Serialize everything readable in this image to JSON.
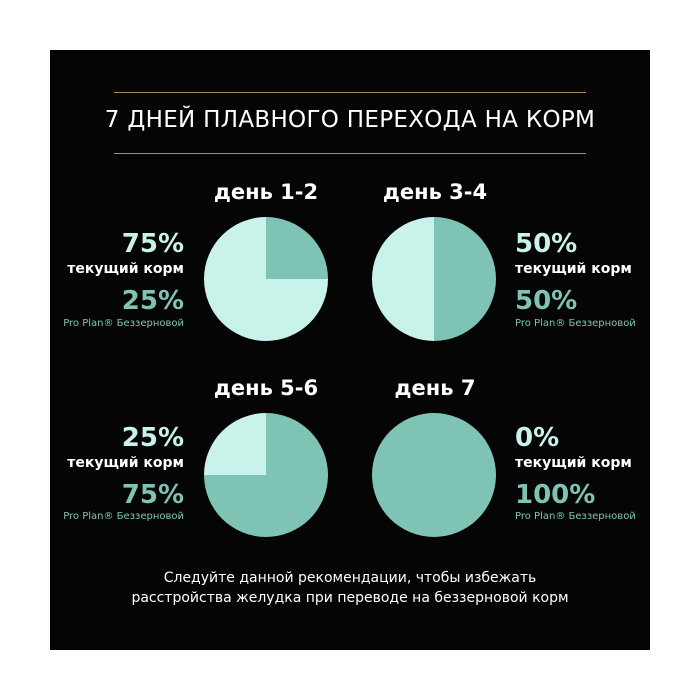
{
  "title": "7 ДНЕЙ ПЛАВНОГО ПЕРЕХОДА НА КОРМ",
  "footer": {
    "line1": "Следуйте данной рекомендации, чтобы избежать",
    "line2": "расстройства желудка при переводе на беззерновой корм"
  },
  "colors": {
    "current_food": "#c9f2ea",
    "pro_plan": "#7fc3b4",
    "background": "#050505",
    "rule": "#b18a4e"
  },
  "chart_data": [
    {
      "type": "pie",
      "title": "день 1-2",
      "labels": [
        "текущий корм",
        "Pro Plan® Беззерновой"
      ],
      "values": [
        75,
        25
      ],
      "value_labels": [
        "75%",
        "25%"
      ]
    },
    {
      "type": "pie",
      "title": "день 3-4",
      "labels": [
        "текущий корм",
        "Pro Plan® Беззерновой"
      ],
      "values": [
        50,
        50
      ],
      "value_labels": [
        "50%",
        "50%"
      ]
    },
    {
      "type": "pie",
      "title": "день 5-6",
      "labels": [
        "текущий корм",
        "Pro Plan® Беззерновой"
      ],
      "values": [
        25,
        75
      ],
      "value_labels": [
        "25%",
        "75%"
      ]
    },
    {
      "type": "pie",
      "title": "день 7",
      "labels": [
        "текущий корм",
        "Pro Plan® Беззерновой"
      ],
      "values": [
        0,
        100
      ],
      "value_labels": [
        "0%",
        "100%"
      ]
    }
  ]
}
